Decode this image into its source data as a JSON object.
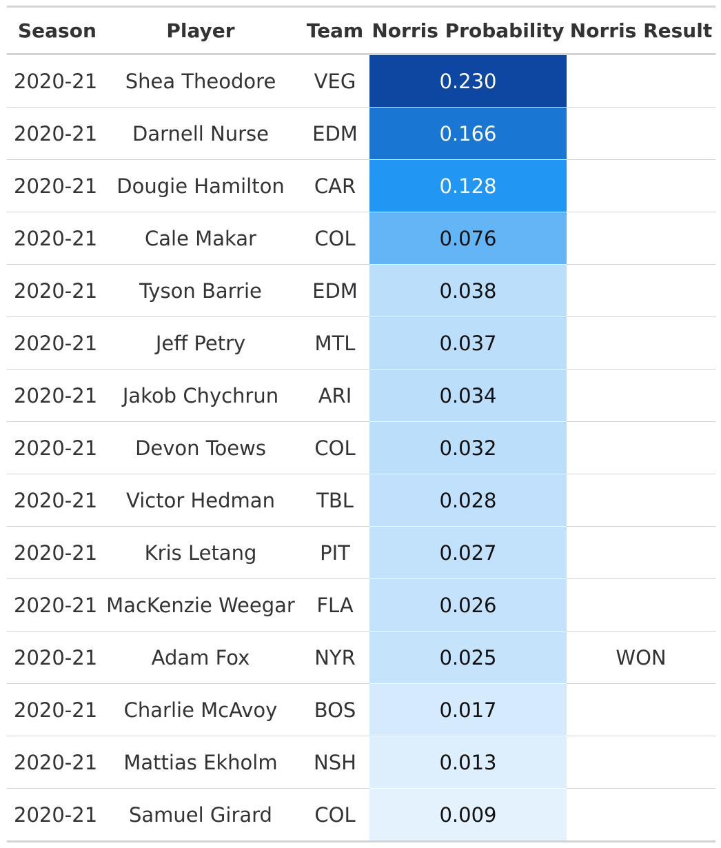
{
  "table": {
    "columns": {
      "season": "Season",
      "player": "Player",
      "team": "Team",
      "probability": "Norris Probability",
      "result": "Norris Result"
    },
    "rows": [
      {
        "season": "2020-21",
        "player": "Shea Theodore",
        "team": "VEG",
        "probability": "0.230",
        "result": "",
        "cell_color": "#0d47a1",
        "text_color": "#ffffff"
      },
      {
        "season": "2020-21",
        "player": "Darnell Nurse",
        "team": "EDM",
        "probability": "0.166",
        "result": "",
        "cell_color": "#1976d2",
        "text_color": "#ffffff"
      },
      {
        "season": "2020-21",
        "player": "Dougie Hamilton",
        "team": "CAR",
        "probability": "0.128",
        "result": "",
        "cell_color": "#2196f3",
        "text_color": "#ffffff"
      },
      {
        "season": "2020-21",
        "player": "Cale Makar",
        "team": "COL",
        "probability": "0.076",
        "result": "",
        "cell_color": "#64b5f6",
        "text_color": "#111111"
      },
      {
        "season": "2020-21",
        "player": "Tyson Barrie",
        "team": "EDM",
        "probability": "0.038",
        "result": "",
        "cell_color": "#bbdefb",
        "text_color": "#111111"
      },
      {
        "season": "2020-21",
        "player": "Jeff Petry",
        "team": "MTL",
        "probability": "0.037",
        "result": "",
        "cell_color": "#bbdefb",
        "text_color": "#111111"
      },
      {
        "season": "2020-21",
        "player": "Jakob Chychrun",
        "team": "ARI",
        "probability": "0.034",
        "result": "",
        "cell_color": "#bbdefb",
        "text_color": "#111111"
      },
      {
        "season": "2020-21",
        "player": "Devon Toews",
        "team": "COL",
        "probability": "0.032",
        "result": "",
        "cell_color": "#bbdefb",
        "text_color": "#111111"
      },
      {
        "season": "2020-21",
        "player": "Victor Hedman",
        "team": "TBL",
        "probability": "0.028",
        "result": "",
        "cell_color": "#c0e0fb",
        "text_color": "#111111"
      },
      {
        "season": "2020-21",
        "player": "Kris Letang",
        "team": "PIT",
        "probability": "0.027",
        "result": "",
        "cell_color": "#c2e1fb",
        "text_color": "#111111"
      },
      {
        "season": "2020-21",
        "player": "MacKenzie Weegar",
        "team": "FLA",
        "probability": "0.026",
        "result": "",
        "cell_color": "#c4e2fb",
        "text_color": "#111111"
      },
      {
        "season": "2020-21",
        "player": "Adam Fox",
        "team": "NYR",
        "probability": "0.025",
        "result": "WON",
        "cell_color": "#c6e3fc",
        "text_color": "#111111"
      },
      {
        "season": "2020-21",
        "player": "Charlie McAvoy",
        "team": "BOS",
        "probability": "0.017",
        "result": "",
        "cell_color": "#d5eafd",
        "text_color": "#111111"
      },
      {
        "season": "2020-21",
        "player": "Mattias Ekholm",
        "team": "NSH",
        "probability": "0.013",
        "result": "",
        "cell_color": "#ddeefd",
        "text_color": "#111111"
      },
      {
        "season": "2020-21",
        "player": "Samuel Girard",
        "team": "COL",
        "probability": "0.009",
        "result": "",
        "cell_color": "#e3f2fd",
        "text_color": "#111111"
      }
    ]
  }
}
